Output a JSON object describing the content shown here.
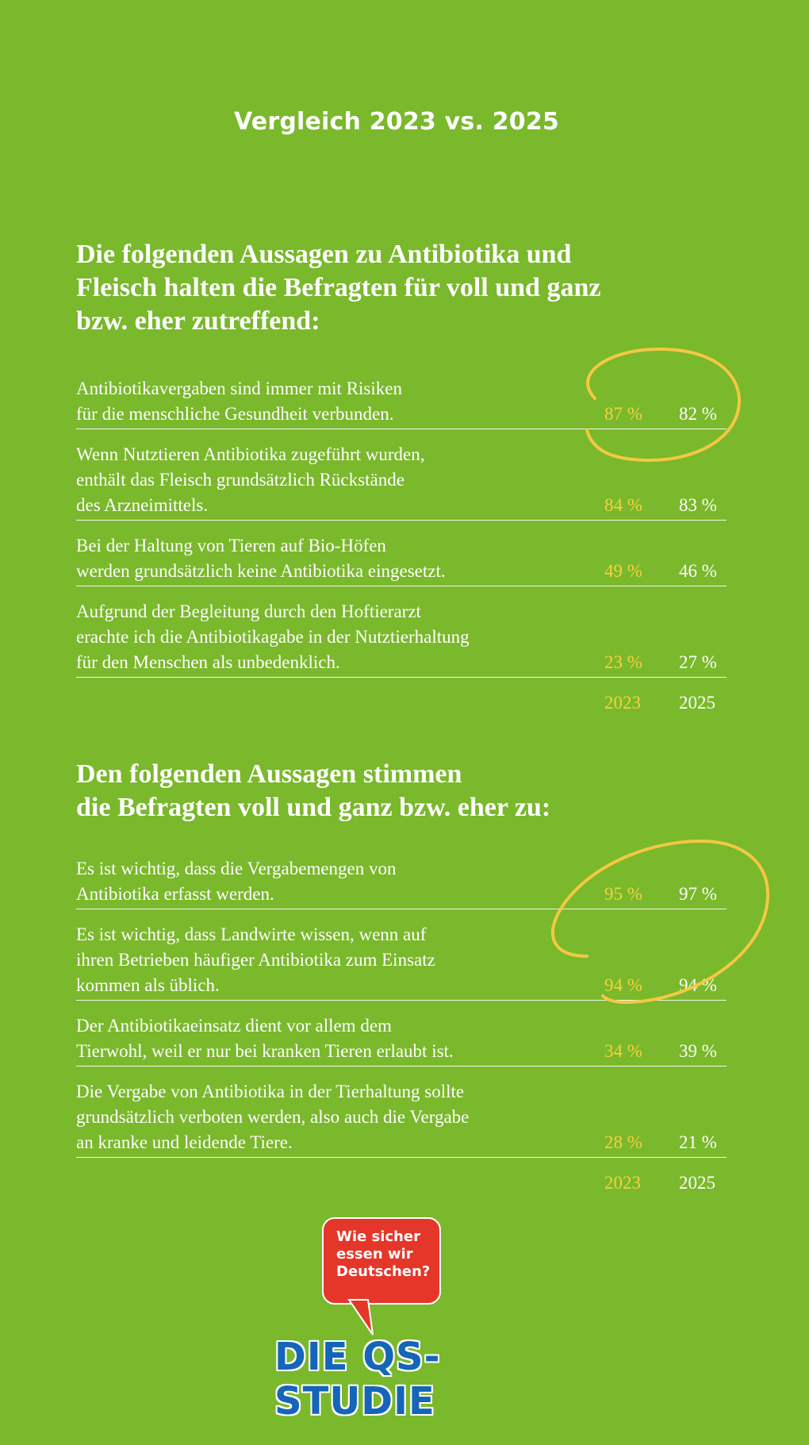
{
  "header": {
    "title": "Vergleich 2023 vs. 2025"
  },
  "section1": {
    "heading_lines": [
      "Die folgenden Aussagen zu Antibiotika und",
      "Fleisch halten die Befragten für voll und ganz",
      "bzw. eher zutreffend:"
    ],
    "rows": [
      {
        "text_lines": [
          "Antibiotikavergaben sind immer mit Risiken",
          "für die menschliche Gesundheit verbunden."
        ],
        "v2023": "87 %",
        "v2025": "82 %"
      },
      {
        "text_lines": [
          "Wenn Nutztieren Antibiotika zugeführt wurden,",
          "enthält das Fleisch grundsätzlich Rückstände",
          "des Arzneimittels."
        ],
        "v2023": "84 %",
        "v2025": "83 %"
      },
      {
        "text_lines": [
          "Bei der Haltung von Tieren auf Bio-Höfen",
          "werden grundsätzlich keine Antibiotika eingesetzt."
        ],
        "v2023": "49 %",
        "v2025": "46 %"
      },
      {
        "text_lines": [
          "Aufgrund der Begleitung durch den Hoftierarzt",
          "erachte ich die Antibiotikagabe in der Nutztierhaltung",
          "für den Menschen als unbedenklich."
        ],
        "v2023": "23 %",
        "v2025": "27 %"
      }
    ],
    "year_labels": {
      "y2023": "2023",
      "y2025": "2025"
    }
  },
  "section2": {
    "heading_lines": [
      "Den folgenden Aussagen stimmen",
      "die Befragten voll und ganz bzw. eher zu:"
    ],
    "rows": [
      {
        "text_lines": [
          "Es ist wichtig, dass die Vergabemengen von",
          "Antibiotika erfasst werden."
        ],
        "v2023": "95 %",
        "v2025": "97 %"
      },
      {
        "text_lines": [
          "Es ist wichtig, dass Landwirte wissen, wenn auf",
          "ihren Betrieben häufiger Antibiotika zum Einsatz",
          "kommen als üblich."
        ],
        "v2023": "94 %",
        "v2025": "94 %"
      },
      {
        "text_lines": [
          "Der Antibiotikaeinsatz dient vor allem dem",
          "Tierwohl, weil er nur bei kranken Tieren erlaubt ist."
        ],
        "v2023": "34 %",
        "v2025": "39 %"
      },
      {
        "text_lines": [
          "Die Vergabe von Antibiotika in der Tierhaltung sollte",
          "grundsätzlich verboten werden, also auch die Vergabe",
          "an kranke und leidende Tiere."
        ],
        "v2023": "28 %",
        "v2025": "21 %"
      }
    ],
    "year_labels": {
      "y2023": "2023",
      "y2025": "2025"
    }
  },
  "logo": {
    "bubble_lines": [
      "Wie sicher",
      "essen wir",
      "Deutschen?"
    ],
    "brand_text": "DIE QS-STUDIE"
  },
  "colors": {
    "background": "#7ab82c",
    "highlight_2023": "#f7d23b",
    "swoosh": "#f5c842",
    "bubble": "#e5362a",
    "brand_blue": "#1565b8"
  }
}
